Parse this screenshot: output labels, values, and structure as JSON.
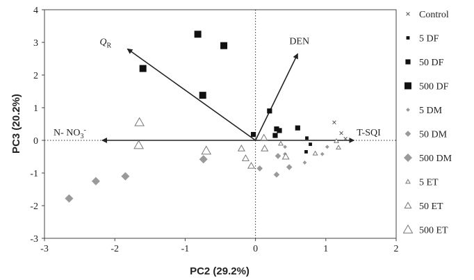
{
  "chart_data": {
    "type": "scatter",
    "title": "",
    "xlabel": "PC2 (29.2%)",
    "ylabel": "PC3 (20.2%)",
    "xlim": [
      -3,
      2
    ],
    "ylim": [
      -3,
      4
    ],
    "xticks": [
      -3,
      -2,
      -1,
      0,
      1,
      2
    ],
    "yticks": [
      -3,
      -2,
      -1,
      0,
      1,
      2,
      3,
      4
    ],
    "grid": false,
    "zero_lines": "dotted",
    "legend_position": "right",
    "vectors": [
      {
        "name": "Q",
        "subscript": "R",
        "x": -1.82,
        "y": 2.8
      },
      {
        "name": "DEN",
        "x": 0.6,
        "y": 2.65
      },
      {
        "name": "N- NO",
        "subscript": "3",
        "superscript": "-",
        "x": -2.18,
        "y": 0
      },
      {
        "name": "T-SQI",
        "x": 1.4,
        "y": 0
      }
    ],
    "series": [
      {
        "name": "Control",
        "marker": "x",
        "size": "small",
        "color": "#555555",
        "points": [
          [
            1.12,
            0.55
          ],
          [
            1.22,
            0.22
          ],
          [
            1.28,
            0.05
          ]
        ]
      },
      {
        "name": "5 DF",
        "marker": "square",
        "size": "small",
        "color": "#111111",
        "points": [
          [
            0.73,
            0.07
          ],
          [
            0.72,
            -0.35
          ],
          [
            0.78,
            -0.12
          ]
        ]
      },
      {
        "name": "50 DF",
        "marker": "square",
        "size": "medium",
        "color": "#111111",
        "points": [
          [
            0.3,
            0.35
          ],
          [
            0.34,
            0.3
          ],
          [
            0.28,
            0.15
          ],
          [
            0.6,
            0.38
          ],
          [
            0.2,
            0.9
          ],
          [
            -0.03,
            0.18
          ]
        ]
      },
      {
        "name": "500 DF",
        "marker": "square",
        "size": "large",
        "color": "#111111",
        "points": [
          [
            -0.82,
            3.25
          ],
          [
            -0.45,
            2.9
          ],
          [
            -1.6,
            2.2
          ],
          [
            -0.75,
            1.38
          ]
        ]
      },
      {
        "name": "5 DM",
        "marker": "diamond",
        "size": "small",
        "color": "#9a9a9a",
        "points": [
          [
            0.42,
            -0.42
          ],
          [
            0.7,
            -0.68
          ],
          [
            0.95,
            -0.42
          ],
          [
            1.02,
            -0.2
          ],
          [
            0.42,
            -0.2
          ]
        ]
      },
      {
        "name": "50 DM",
        "marker": "diamond",
        "size": "medium",
        "color": "#9a9a9a",
        "points": [
          [
            0.06,
            -0.86
          ],
          [
            0.3,
            -1.05
          ],
          [
            0.48,
            -0.82
          ],
          [
            0.32,
            -0.48
          ]
        ]
      },
      {
        "name": "500 DM",
        "marker": "diamond",
        "size": "large",
        "color": "#9a9a9a",
        "points": [
          [
            -2.65,
            -1.78
          ],
          [
            -2.27,
            -1.25
          ],
          [
            -1.85,
            -1.1
          ],
          [
            -0.74,
            -0.58
          ]
        ]
      },
      {
        "name": "5 ET",
        "marker": "triangle",
        "size": "small",
        "color": "#777777",
        "points": [
          [
            1.15,
            -0.02
          ],
          [
            1.18,
            -0.22
          ],
          [
            0.85,
            -0.4
          ],
          [
            0.36,
            -0.1
          ]
        ]
      },
      {
        "name": "50 ET",
        "marker": "triangle",
        "size": "medium",
        "color": "#777777",
        "points": [
          [
            -0.2,
            -0.25
          ],
          [
            -0.14,
            -0.55
          ],
          [
            -0.06,
            -0.78
          ],
          [
            0.13,
            -0.25
          ],
          [
            0.43,
            -0.5
          ],
          [
            0.12,
            0.08
          ]
        ]
      },
      {
        "name": "500 ET",
        "marker": "triangle",
        "size": "large",
        "color": "#777777",
        "points": [
          [
            -1.65,
            0.55
          ],
          [
            -1.66,
            -0.15
          ],
          [
            -0.7,
            -0.32
          ]
        ]
      }
    ]
  }
}
